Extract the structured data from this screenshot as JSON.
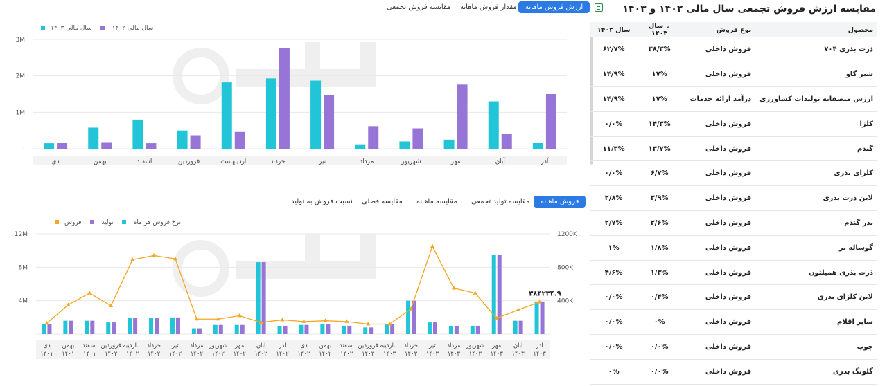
{
  "top_tabs": [
    "ارزش فروش ماهانه",
    "مقدار فروش ماهانه",
    "مقایسه فروش تجمعی"
  ],
  "top_legend": [
    "سال مالی ۱۴۰۳",
    "سال مالی ۱۴۰۲"
  ],
  "bottom_tabs": [
    "فروش ماهانه",
    "مقایسه تولید تجمعی",
    "مقایسه ماهانه",
    "مقایسه فصلی",
    "نسبت فروش به تولید"
  ],
  "bottom_legend": [
    "فروش",
    "تولید",
    "نرخ فروش هر ماه"
  ],
  "colors": {
    "teal": "#22c4d8",
    "purple": "#9775d6",
    "orange": "#f5a623",
    "accent": "#2c7be5"
  },
  "chart_data": [
    {
      "type": "bar",
      "categories": [
        "آذر",
        "آبان",
        "مهر",
        "شهریور",
        "مرداد",
        "تیر",
        "خرداد",
        "اردیبهشت",
        "فروردین",
        "اسفند",
        "بهمن",
        "دی"
      ],
      "series": [
        {
          "name": "سال مالی ۱۴۰۲",
          "values": [
            0.16,
            1.3,
            0.25,
            0.2,
            0.12,
            1.87,
            1.93,
            1.82,
            0.5,
            0.8,
            0.58,
            0.15
          ]
        },
        {
          "name": "سال مالی ۱۴۰۳",
          "values": [
            1.5,
            0.41,
            1.76,
            0.56,
            0.62,
            1.48,
            2.77,
            0.46,
            0.37,
            0.15,
            0.18,
            0.16
          ]
        }
      ],
      "yticks": [
        "۰",
        "1M",
        "2M",
        "3M"
      ],
      "ylim": [
        0,
        3
      ]
    },
    {
      "type": "bar",
      "categories": [
        "دی ۱۴۰۱",
        "بهمن ۱۴۰۱",
        "اسفند ۱۴۰۱",
        "فروردین ۱۴۰۲",
        "اردیبه... ۱۴۰۲",
        "خرداد ۱۴۰۲",
        "تیر ۱۴۰۲",
        "مرداد ۱۴۰۲",
        "شهریور ۱۴۰۲",
        "مهر ۱۴۰۲",
        "آبان ۱۴۰۲",
        "آذر ۱۴۰۲",
        "دی ۱۴۰۲",
        "بهمن ۱۴۰۲",
        "اسفند ۱۴۰۲",
        "فروردین ۱۴۰۳",
        "اردیبه... ۱۴۰۳",
        "خرداد ۱۴۰۳",
        "تیر ۱۴۰۳",
        "مرداد ۱۴۰۳",
        "شهریور ۱۴۰۳",
        "مهر ۱۴۰۳",
        "آبان ۱۴۰۳",
        "آذر ۱۴۰۳"
      ],
      "series": [
        {
          "name": "فروش",
          "values": [
            1.2,
            1.6,
            1.6,
            1.4,
            1.9,
            1.9,
            2.0,
            0.7,
            1.1,
            1.1,
            8.6,
            1.0,
            1.1,
            1.2,
            1.0,
            0.8,
            1.2,
            4.0,
            1.4,
            1.0,
            1.0,
            9.5,
            1.6,
            3.9
          ]
        },
        {
          "name": "تولید",
          "values": [
            1.2,
            1.6,
            1.6,
            1.4,
            1.9,
            1.9,
            2.0,
            0.7,
            1.1,
            1.1,
            8.6,
            1.0,
            1.1,
            1.2,
            1.0,
            0.8,
            1.2,
            4.0,
            1.4,
            1.0,
            1.0,
            9.5,
            1.6,
            3.9
          ]
        },
        {
          "name": "نرخ فروش هر ماه",
          "values": [
            130,
            350,
            490,
            340,
            890,
            940,
            900,
            180,
            180,
            220,
            140,
            170,
            150,
            160,
            150,
            120,
            120,
            300,
            1050,
            550,
            490,
            190,
            290,
            384
          ]
        }
      ],
      "yticks_left": [
        "۰",
        "4M",
        "8M",
        "12M"
      ],
      "ylim_left": [
        0,
        12
      ],
      "yticks_right": [
        "400K",
        "800K",
        "1200K"
      ],
      "ylim_right": [
        0,
        1200
      ],
      "annotation": "۳۸۴۲۳۴.۹"
    }
  ],
  "table": {
    "title": "مقایسه ارزش فروش تجمعی سال مالی ۱۴۰۲ و ۱۴۰۳",
    "headers": [
      "محصول",
      "نوع فروش",
      "سال ۱۴۰۳",
      "سال ۱۴۰۲"
    ],
    "rows": [
      [
        "ذرت بذری ۷۰۴",
        "فروش داخلی",
        "۳۸/۳%",
        "۶۲/۷%"
      ],
      [
        "شیر گاو",
        "فروش داخلی",
        "۱۷%",
        "۱۴/۹%"
      ],
      [
        "ارزش منصفانه تولیدات کشاورزی",
        "درآمد ارائه خدمات",
        "۱۷%",
        "۱۴/۹%"
      ],
      [
        "کلزا",
        "فروش داخلی",
        "۱۴/۳%",
        "۰/۰%"
      ],
      [
        "گندم",
        "فروش داخلی",
        "۱۳/۷%",
        "۱۱/۳%"
      ],
      [
        "کلزای بذری",
        "فروش داخلی",
        "۶/۷%",
        "۰/۰%"
      ],
      [
        "لاین ذرت بذری",
        "فروش داخلی",
        "۳/۹%",
        "۲/۸%"
      ],
      [
        "بذر گندم",
        "فروش داخلی",
        "۲/۶%",
        "۲/۷%"
      ],
      [
        "گوساله نر",
        "فروش داخلی",
        "۱/۸%",
        "۱%"
      ],
      [
        "ذرت بذری همیلتون",
        "فروش داخلی",
        "۱/۳%",
        "۴/۶%"
      ],
      [
        "لاین کلزای بذری",
        "فروش داخلی",
        "۰/۴%",
        "۰/۰%"
      ],
      [
        "سایر اقلام",
        "فروش داخلی",
        "۰%",
        "۰/۰%"
      ],
      [
        "چوب",
        "فروش داخلی",
        "۰/۰%",
        "۰/۰%"
      ],
      [
        "گلونگ بذری",
        "فروش داخلی",
        "۰/۰%",
        "۰%"
      ]
    ]
  }
}
